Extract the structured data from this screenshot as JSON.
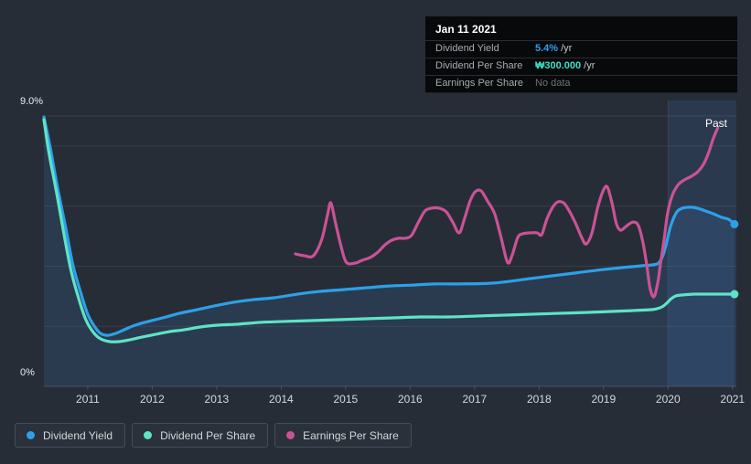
{
  "tooltip": {
    "date": "Jan 11 2021",
    "rows": [
      {
        "label": "Dividend Yield",
        "value": "5.4%",
        "suffix": "/yr"
      },
      {
        "label": "Dividend Per Share",
        "value": "₩300.000",
        "suffix": "/yr"
      },
      {
        "label": "Earnings Per Share",
        "value": "No data",
        "suffix": ""
      }
    ]
  },
  "past_label": "Past",
  "legend": [
    {
      "label": "Dividend Yield",
      "color": "#2da0e8"
    },
    {
      "label": "Dividend Per Share",
      "color": "#5fe3c7"
    },
    {
      "label": "Earnings Per Share",
      "color": "#ca5296"
    }
  ],
  "colors": {
    "background": "#262d37",
    "tooltip_background": "#07090b",
    "past_band": "rgba(64,130,215,0.15)",
    "area_fill": "rgba(70,150,230,0.14)",
    "gridline": "rgba(255,255,255,0.08)",
    "axis_line": "rgba(255,255,255,0.16)",
    "blue": "#2da0e8",
    "teal": "#5fe3c7",
    "pink": "#ca5296"
  },
  "chart_data": {
    "type": "line",
    "title": "Dividend history (yield, dividend per share, earnings per share)",
    "x_axis": {
      "years": [
        2011,
        2012,
        2013,
        2014,
        2015,
        2016,
        2017,
        2018,
        2019,
        2020,
        2021
      ],
      "range": [
        2010.32,
        2021.06
      ]
    },
    "y_axis": {
      "unit": "%",
      "min": 0,
      "max": 9,
      "top_label": "9.0%",
      "bottom_label": "0%",
      "gridlines_pct": [
        9,
        8,
        6,
        4,
        2
      ]
    },
    "past_region_start_year": 2020,
    "legend_position": "bottom-left",
    "series": [
      {
        "name": "Dividend Yield",
        "color": "#2da0e8",
        "unit": "%",
        "area": true,
        "end_dot": true,
        "points": [
          [
            2010.32,
            8.97
          ],
          [
            2010.42,
            7.93
          ],
          [
            2010.53,
            6.63
          ],
          [
            2010.66,
            5.26
          ],
          [
            2010.77,
            4.04
          ],
          [
            2010.89,
            3.13
          ],
          [
            2011.0,
            2.4
          ],
          [
            2011.11,
            1.98
          ],
          [
            2011.2,
            1.76
          ],
          [
            2011.31,
            1.7
          ],
          [
            2011.43,
            1.76
          ],
          [
            2011.57,
            1.89
          ],
          [
            2011.74,
            2.04
          ],
          [
            2011.94,
            2.16
          ],
          [
            2012.16,
            2.28
          ],
          [
            2012.42,
            2.43
          ],
          [
            2012.69,
            2.55
          ],
          [
            2012.97,
            2.68
          ],
          [
            2013.26,
            2.8
          ],
          [
            2013.58,
            2.89
          ],
          [
            2013.89,
            2.95
          ],
          [
            2014.25,
            3.07
          ],
          [
            2014.6,
            3.16
          ],
          [
            2014.96,
            3.22
          ],
          [
            2015.31,
            3.28
          ],
          [
            2015.67,
            3.34
          ],
          [
            2016.02,
            3.37
          ],
          [
            2016.38,
            3.41
          ],
          [
            2016.73,
            3.41
          ],
          [
            2017.3,
            3.44
          ],
          [
            2017.87,
            3.59
          ],
          [
            2018.43,
            3.74
          ],
          [
            2019.0,
            3.89
          ],
          [
            2019.57,
            4.01
          ],
          [
            2019.74,
            4.04
          ],
          [
            2019.85,
            4.1
          ],
          [
            2019.92,
            4.35
          ],
          [
            2019.98,
            4.8
          ],
          [
            2020.03,
            5.26
          ],
          [
            2020.09,
            5.62
          ],
          [
            2020.15,
            5.84
          ],
          [
            2020.22,
            5.93
          ],
          [
            2020.3,
            5.96
          ],
          [
            2020.39,
            5.96
          ],
          [
            2020.5,
            5.9
          ],
          [
            2020.62,
            5.81
          ],
          [
            2020.73,
            5.72
          ],
          [
            2020.84,
            5.62
          ],
          [
            2020.94,
            5.56
          ],
          [
            2021.03,
            5.4
          ]
        ]
      },
      {
        "name": "Dividend Per Share",
        "color": "#5fe3c7",
        "unit": "%-axis position (₩ scale hidden)",
        "area": false,
        "end_dot": true,
        "points": [
          [
            2010.32,
            8.88
          ],
          [
            2010.4,
            7.75
          ],
          [
            2010.52,
            6.41
          ],
          [
            2010.63,
            5.08
          ],
          [
            2010.74,
            3.86
          ],
          [
            2010.86,
            2.92
          ],
          [
            2010.97,
            2.22
          ],
          [
            2011.09,
            1.79
          ],
          [
            2011.2,
            1.58
          ],
          [
            2011.34,
            1.49
          ],
          [
            2011.48,
            1.49
          ],
          [
            2011.65,
            1.55
          ],
          [
            2011.84,
            1.64
          ],
          [
            2012.05,
            1.73
          ],
          [
            2012.26,
            1.82
          ],
          [
            2012.48,
            1.88
          ],
          [
            2012.76,
            1.98
          ],
          [
            2013.04,
            2.04
          ],
          [
            2013.33,
            2.07
          ],
          [
            2013.68,
            2.13
          ],
          [
            2014.04,
            2.16
          ],
          [
            2014.46,
            2.19
          ],
          [
            2014.89,
            2.22
          ],
          [
            2015.31,
            2.25
          ],
          [
            2015.74,
            2.28
          ],
          [
            2016.16,
            2.31
          ],
          [
            2016.59,
            2.31
          ],
          [
            2017.01,
            2.34
          ],
          [
            2017.44,
            2.37
          ],
          [
            2017.87,
            2.4
          ],
          [
            2018.29,
            2.43
          ],
          [
            2018.72,
            2.46
          ],
          [
            2019.07,
            2.49
          ],
          [
            2019.43,
            2.52
          ],
          [
            2019.71,
            2.55
          ],
          [
            2019.82,
            2.58
          ],
          [
            2019.91,
            2.65
          ],
          [
            2019.98,
            2.77
          ],
          [
            2020.05,
            2.92
          ],
          [
            2020.12,
            3.01
          ],
          [
            2020.21,
            3.04
          ],
          [
            2020.42,
            3.07
          ],
          [
            2020.7,
            3.07
          ],
          [
            2021.03,
            3.07
          ]
        ]
      },
      {
        "name": "Earnings Per Share",
        "color": "#ca5296",
        "unit": "%-axis position (scale hidden)",
        "area": false,
        "end_dot": false,
        "points": [
          [
            2014.22,
            4.41
          ],
          [
            2014.36,
            4.35
          ],
          [
            2014.5,
            4.35
          ],
          [
            2014.63,
            4.9
          ],
          [
            2014.72,
            5.72
          ],
          [
            2014.77,
            6.11
          ],
          [
            2014.84,
            5.47
          ],
          [
            2014.93,
            4.65
          ],
          [
            2015.01,
            4.13
          ],
          [
            2015.14,
            4.1
          ],
          [
            2015.26,
            4.2
          ],
          [
            2015.38,
            4.29
          ],
          [
            2015.5,
            4.47
          ],
          [
            2015.61,
            4.71
          ],
          [
            2015.71,
            4.86
          ],
          [
            2015.82,
            4.93
          ],
          [
            2015.92,
            4.93
          ],
          [
            2016.02,
            5.02
          ],
          [
            2016.13,
            5.47
          ],
          [
            2016.23,
            5.84
          ],
          [
            2016.33,
            5.93
          ],
          [
            2016.45,
            5.93
          ],
          [
            2016.56,
            5.81
          ],
          [
            2016.66,
            5.47
          ],
          [
            2016.76,
            5.11
          ],
          [
            2016.84,
            5.56
          ],
          [
            2016.93,
            6.17
          ],
          [
            2017.01,
            6.48
          ],
          [
            2017.1,
            6.51
          ],
          [
            2017.2,
            6.17
          ],
          [
            2017.31,
            5.75
          ],
          [
            2017.41,
            4.96
          ],
          [
            2017.51,
            4.13
          ],
          [
            2017.58,
            4.35
          ],
          [
            2017.67,
            4.96
          ],
          [
            2017.75,
            5.08
          ],
          [
            2017.87,
            5.11
          ],
          [
            2017.97,
            5.11
          ],
          [
            2018.04,
            5.05
          ],
          [
            2018.12,
            5.56
          ],
          [
            2018.21,
            5.96
          ],
          [
            2018.29,
            6.14
          ],
          [
            2018.38,
            6.11
          ],
          [
            2018.46,
            5.87
          ],
          [
            2018.57,
            5.41
          ],
          [
            2018.66,
            4.96
          ],
          [
            2018.73,
            4.74
          ],
          [
            2018.82,
            5.11
          ],
          [
            2018.91,
            5.96
          ],
          [
            2019.0,
            6.54
          ],
          [
            2019.06,
            6.63
          ],
          [
            2019.13,
            6.11
          ],
          [
            2019.2,
            5.41
          ],
          [
            2019.26,
            5.2
          ],
          [
            2019.33,
            5.29
          ],
          [
            2019.4,
            5.41
          ],
          [
            2019.47,
            5.47
          ],
          [
            2019.54,
            5.35
          ],
          [
            2019.61,
            4.8
          ],
          [
            2019.67,
            4.04
          ],
          [
            2019.72,
            3.28
          ],
          [
            2019.78,
            2.98
          ],
          [
            2019.84,
            3.44
          ],
          [
            2019.88,
            4.04
          ],
          [
            2019.94,
            4.9
          ],
          [
            2019.99,
            5.72
          ],
          [
            2020.06,
            6.32
          ],
          [
            2020.15,
            6.69
          ],
          [
            2020.25,
            6.87
          ],
          [
            2020.36,
            6.99
          ],
          [
            2020.46,
            7.14
          ],
          [
            2020.55,
            7.39
          ],
          [
            2020.63,
            7.78
          ],
          [
            2020.7,
            8.24
          ],
          [
            2020.77,
            8.6
          ]
        ]
      }
    ]
  }
}
